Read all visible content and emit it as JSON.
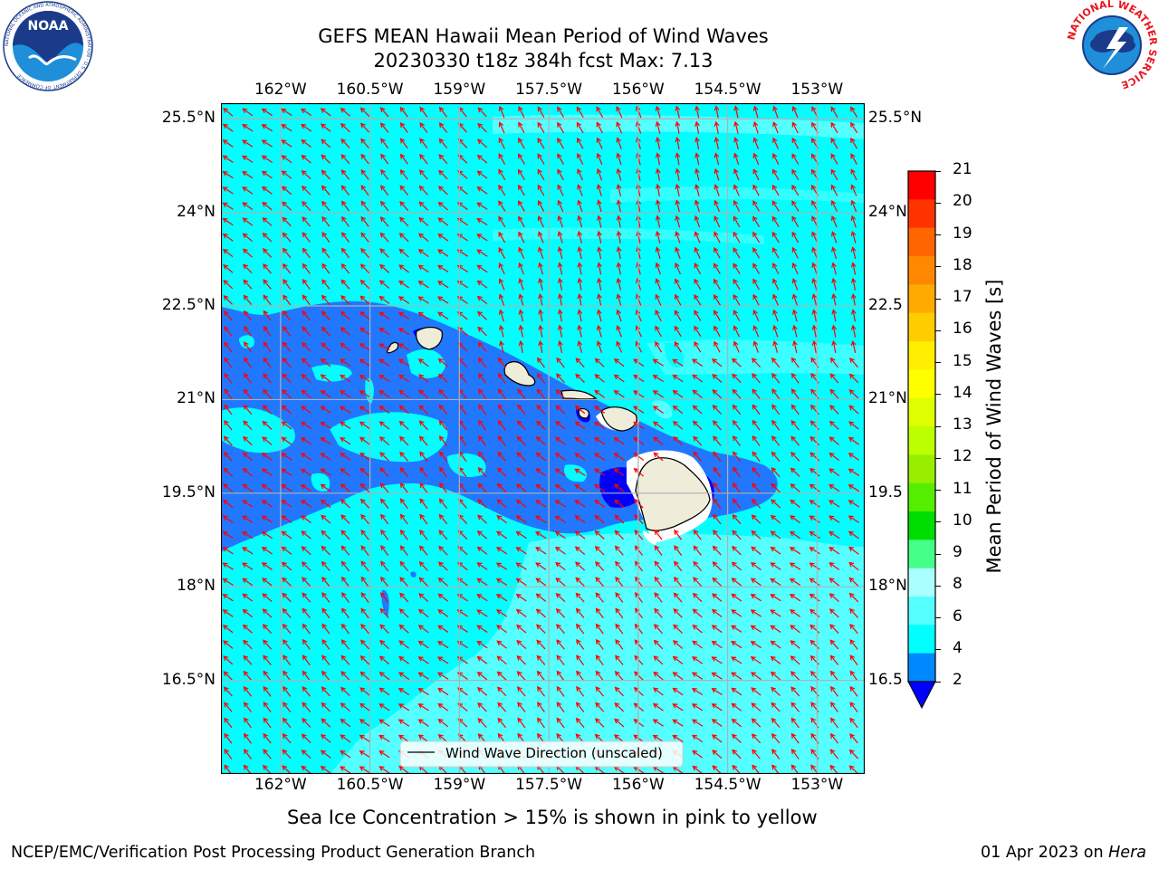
{
  "title": {
    "line1": "GEFS MEAN Hawaii Mean Period of Wind Waves",
    "line2": "20230330 t18z 384h fcst   Max: 7.13"
  },
  "logos": {
    "noaa_text": "NOAA",
    "noaa_ring": "NATIONAL OCEANIC AND ATMOSPHERIC ADMINISTRATION · U.S. DEPARTMENT OF COMMERCE",
    "nws_ring": "NATIONAL WEATHER SERVICE"
  },
  "map": {
    "lon_labels": [
      "162°W",
      "160.5°W",
      "159°W",
      "157.5°W",
      "156°W",
      "154.5°W",
      "153°W"
    ],
    "lat_labels": [
      "25.5°N",
      "24°N",
      "22.5°N",
      "21°N",
      "19.5°N",
      "18°N",
      "16.5°N"
    ],
    "lat_labels_right": [
      "25.5°N",
      "24°N",
      "22.5",
      "21°N",
      "19.5",
      "18°N",
      "16.5"
    ],
    "lon_values": [
      -162,
      -160.5,
      -159,
      -157.5,
      -156,
      -154.5,
      -153
    ],
    "lat_values": [
      25.5,
      24,
      22.5,
      21,
      19.5,
      18,
      16.5
    ],
    "lon_range": [
      -163,
      -152.2
    ],
    "lat_range": [
      15,
      25.75
    ],
    "grid": true,
    "ocean_color": "#00ffff",
    "land_color": "#efedda",
    "arrow_color": "#ff0000",
    "legend_label": "Wind Wave Direction (unscaled)"
  },
  "colorbar": {
    "label": "Mean Period of Wind Waves [s]",
    "ticks": [
      "21",
      "20",
      "19",
      "18",
      "17",
      "16",
      "15",
      "14",
      "13",
      "12",
      "11",
      "10",
      "9",
      "8",
      "6",
      "4",
      "2"
    ],
    "colors_top_to_bottom": [
      "#ff0000",
      "#ff3300",
      "#ff6600",
      "#ff8800",
      "#ffaa00",
      "#ffcc00",
      "#ffee00",
      "#ffff00",
      "#ddff00",
      "#bbff00",
      "#99ee00",
      "#55ee00",
      "#00dd00",
      "#44ff88",
      "#aaffff",
      "#55ffff",
      "#00ffff",
      "#0088ff"
    ],
    "extend_color": "#0000ff"
  },
  "caption": "Sea Ice Concentration > 15% is shown in pink to yellow",
  "footer": {
    "left": "NCEP/EMC/Verification Post Processing Product Generation Branch",
    "date": "01 Apr 2023 on ",
    "machine": "Hera"
  }
}
